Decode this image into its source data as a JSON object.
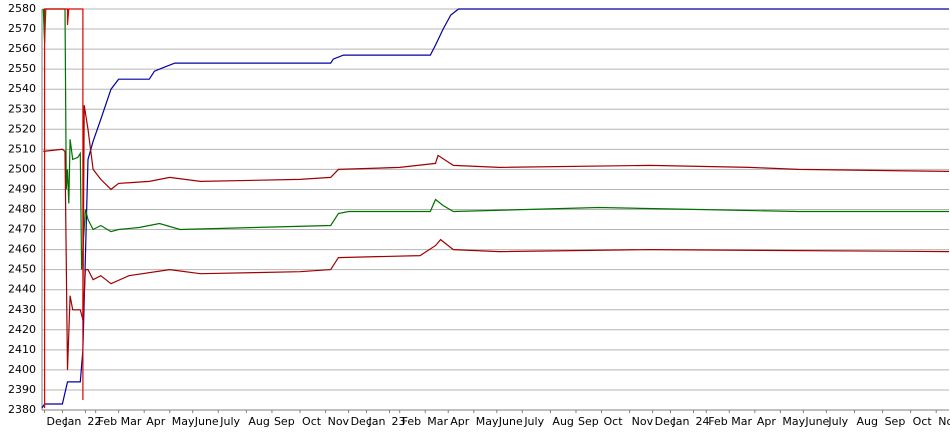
{
  "chart_data": {
    "type": "line",
    "xlim": [
      0,
      35.5
    ],
    "ylim": [
      2380,
      2580
    ],
    "yticks": [
      2380,
      2390,
      2400,
      2410,
      2420,
      2430,
      2440,
      2450,
      2460,
      2470,
      2480,
      2490,
      2500,
      2510,
      2520,
      2530,
      2540,
      2550,
      2560,
      2570,
      2580
    ],
    "xticks": [
      {
        "value": 0.1,
        "label": "Dec"
      },
      {
        "value": 0.8,
        "label": "Jan"
      },
      {
        "value": 1.7,
        "label": "22"
      },
      {
        "value": 2.1,
        "label": "Feb"
      },
      {
        "value": 3.0,
        "label": "Mar"
      },
      {
        "value": 4.0,
        "label": "Apr"
      },
      {
        "value": 5.0,
        "label": "May"
      },
      {
        "value": 5.9,
        "label": "June"
      },
      {
        "value": 6.9,
        "label": "July"
      },
      {
        "value": 8.0,
        "label": "Aug"
      },
      {
        "value": 9.0,
        "label": "Sep"
      },
      {
        "value": 10.1,
        "label": "Oct"
      },
      {
        "value": 11.1,
        "label": "Nov"
      },
      {
        "value": 12.0,
        "label": "Dec"
      },
      {
        "value": 12.7,
        "label": "Jan"
      },
      {
        "value": 13.6,
        "label": "23"
      },
      {
        "value": 14.0,
        "label": "Feb"
      },
      {
        "value": 15.0,
        "label": "Mar"
      },
      {
        "value": 15.9,
        "label": "Apr"
      },
      {
        "value": 16.9,
        "label": "May"
      },
      {
        "value": 17.8,
        "label": "June"
      },
      {
        "value": 18.8,
        "label": "July"
      },
      {
        "value": 19.9,
        "label": "Aug"
      },
      {
        "value": 20.9,
        "label": "Sep"
      },
      {
        "value": 21.9,
        "label": "Oct"
      },
      {
        "value": 23.0,
        "label": "Nov"
      },
      {
        "value": 23.9,
        "label": "Dec"
      },
      {
        "value": 24.6,
        "label": "Jan"
      },
      {
        "value": 25.5,
        "label": "24"
      },
      {
        "value": 26.0,
        "label": "Feb"
      },
      {
        "value": 26.9,
        "label": "Mar"
      },
      {
        "value": 27.9,
        "label": "Apr"
      },
      {
        "value": 28.9,
        "label": "May"
      },
      {
        "value": 29.8,
        "label": "June"
      },
      {
        "value": 30.7,
        "label": "July"
      },
      {
        "value": 31.8,
        "label": "Aug"
      },
      {
        "value": 32.9,
        "label": "Sep"
      },
      {
        "value": 34.0,
        "label": "Oct"
      },
      {
        "value": 35.0,
        "label": "No"
      }
    ],
    "grid": true,
    "series": [
      {
        "color": "#0000a0",
        "x": [
          0,
          0.1,
          0.8,
          1.0,
          1.5,
          1.6,
          1.8,
          2.0,
          2.3,
          2.7,
          3.0,
          4.2,
          4.4,
          4.8,
          5.2,
          11.3,
          11.4,
          11.8,
          15.2,
          15.4,
          15.7,
          16.0,
          16.3,
          35.5
        ],
        "values": [
          2381,
          2383,
          2383,
          2394,
          2394,
          2410,
          2505,
          2514,
          2525,
          2540,
          2545,
          2545,
          2549,
          2551,
          2553,
          2553,
          2555,
          2557,
          2557,
          2562,
          2570,
          2577,
          2580,
          2580
        ]
      },
      {
        "color": "#007000",
        "x": [
          0.05,
          0.1,
          0.15,
          0.9,
          0.95,
          1.0,
          1.05,
          1.1,
          1.2,
          1.4,
          1.5,
          1.55,
          1.7,
          1.8,
          2.0,
          2.3,
          2.7,
          3.0,
          3.8,
          4.6,
          5.4,
          11.3,
          11.6,
          12.0,
          15.2,
          15.4,
          15.7,
          16.1,
          21.8,
          25.7,
          29.6,
          35.5
        ],
        "values": [
          2580,
          2563,
          2580,
          2580,
          2490,
          2500,
          2483,
          2515,
          2505,
          2506,
          2508,
          2450,
          2480,
          2475,
          2470,
          2472,
          2469,
          2470,
          2471,
          2473,
          2470,
          2472,
          2478,
          2479,
          2479,
          2485,
          2482,
          2479,
          2481,
          2480,
          2479,
          2479
        ]
      },
      {
        "color": "#a00000",
        "x": [
          0.05,
          0.8,
          0.9,
          1.0,
          1.1,
          1.2,
          1.5,
          1.6,
          1.65,
          1.8,
          2.0,
          2.3,
          2.7,
          3.0,
          4.2,
          5.0,
          6.2,
          10.1,
          11.3,
          11.6,
          14.0,
          15.4,
          15.5,
          16.1,
          17.9,
          23.8,
          27.7,
          29.6,
          35.5
        ],
        "values": [
          2509,
          2510,
          2509,
          2400,
          2437,
          2430,
          2430,
          2425,
          2532,
          2520,
          2500,
          2495,
          2490,
          2493,
          2494,
          2496,
          2494,
          2495,
          2496,
          2500,
          2501,
          2503,
          2507,
          2502,
          2501,
          2502,
          2501,
          2500,
          2499
        ]
      },
      {
        "color": "#a00000",
        "x": [
          1.6,
          1.7,
          1.8,
          2.0,
          2.3,
          2.7,
          3.4,
          5.0,
          6.2,
          10.1,
          11.3,
          11.6,
          14.8,
          15.4,
          15.6,
          16.1,
          17.9,
          23.8,
          35.5
        ],
        "values": [
          2425,
          2450,
          2450,
          2445,
          2447,
          2443,
          2447,
          2450,
          2448,
          2449,
          2450,
          2456,
          2457,
          2462,
          2465,
          2460,
          2459,
          2460,
          2459
        ]
      },
      {
        "color": "#e00000",
        "x": [
          0.1,
          0.1,
          1.0,
          1.0,
          1.05,
          1.6,
          1.6
        ],
        "values": [
          2381,
          2580,
          2580,
          2572,
          2580,
          2580,
          2385
        ]
      }
    ]
  }
}
